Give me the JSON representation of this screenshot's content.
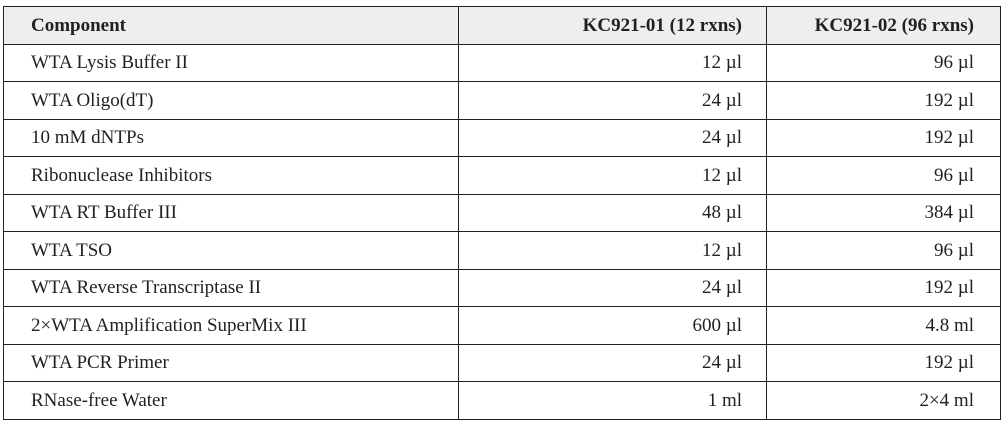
{
  "table": {
    "headers": [
      "Component",
      "KC921-01 (12 rxns)",
      "KC921-02 (96 rxns)"
    ],
    "rows": [
      [
        "WTA Lysis Buffer II",
        "12 µl",
        "96 µl"
      ],
      [
        "WTA Oligo(dT)",
        "24 µl",
        "192 µl"
      ],
      [
        "10 mM dNTPs",
        "24 µl",
        "192 µl"
      ],
      [
        "Ribonuclease Inhibitors",
        "12 µl",
        "96 µl"
      ],
      [
        "WTA RT Buffer III",
        "48 µl",
        "384 µl"
      ],
      [
        "WTA TSO",
        "12 µl",
        "96 µl"
      ],
      [
        "WTA Reverse Transcriptase II",
        "24 µl",
        "192 µl"
      ],
      [
        "2×WTA Amplification SuperMix III",
        "600 µl",
        "4.8 ml"
      ],
      [
        "WTA PCR Primer",
        "24 µl",
        "192 µl"
      ],
      [
        "RNase-free Water",
        "1 ml",
        "2×4 ml"
      ]
    ]
  }
}
